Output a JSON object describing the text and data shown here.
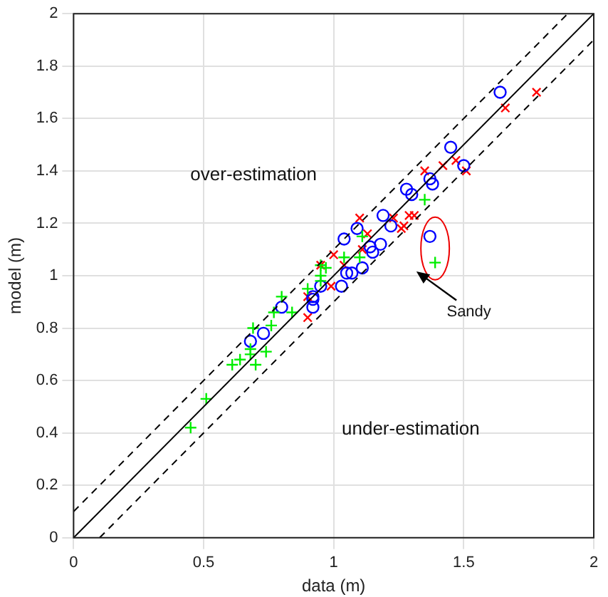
{
  "chart_data": {
    "type": "scatter",
    "xlabel": "data (m)",
    "ylabel": "model (m)",
    "xlim": [
      0,
      2
    ],
    "ylim": [
      0,
      2
    ],
    "xticks": [
      0,
      0.5,
      1,
      1.5,
      2
    ],
    "yticks": [
      0,
      0.2,
      0.4,
      0.6,
      0.8,
      1,
      1.2,
      1.4,
      1.6,
      1.8,
      2
    ],
    "grid": true,
    "legend": false,
    "series": [
      {
        "type": "line",
        "color": "#000000",
        "line_style": "solid",
        "marker": "none",
        "x": [
          0,
          2
        ],
        "values": [
          0,
          2
        ]
      },
      {
        "type": "line",
        "color": "#000000",
        "line_style": "dashed",
        "marker": "none",
        "x": [
          0,
          1.9
        ],
        "values": [
          0.1,
          2
        ]
      },
      {
        "type": "line",
        "color": "#000000",
        "line_style": "dashed",
        "marker": "none",
        "x": [
          0.1,
          2
        ],
        "values": [
          0,
          1.9
        ]
      },
      {
        "color": "#00ee00",
        "marker": "cross",
        "x": [
          0.45,
          0.51,
          0.61,
          0.64,
          0.68,
          0.68,
          0.7,
          0.74,
          0.69,
          0.76,
          0.77,
          0.8,
          0.84,
          0.9,
          0.95,
          0.95,
          0.97,
          0.95,
          1.04,
          1.11,
          1.1,
          1.35,
          1.39
        ],
        "values": [
          0.42,
          0.53,
          0.66,
          0.68,
          0.7,
          0.72,
          0.66,
          0.71,
          0.8,
          0.81,
          0.86,
          0.92,
          0.86,
          0.95,
          1.0,
          1.04,
          1.03,
          0.98,
          1.07,
          1.15,
          1.07,
          1.29,
          1.05
        ]
      },
      {
        "color": "#0000ff",
        "marker": "circle",
        "x": [
          0.68,
          0.73,
          0.8,
          0.92,
          0.92,
          0.92,
          0.95,
          1.03,
          1.05,
          1.07,
          1.11,
          1.04,
          1.09,
          1.14,
          1.15,
          1.18,
          1.19,
          1.22,
          1.28,
          1.3,
          1.37,
          1.38,
          1.45,
          1.5,
          1.37,
          1.64
        ],
        "values": [
          0.75,
          0.78,
          0.88,
          0.91,
          0.88,
          0.92,
          0.96,
          0.96,
          1.01,
          1.01,
          1.03,
          1.14,
          1.18,
          1.11,
          1.09,
          1.12,
          1.23,
          1.19,
          1.33,
          1.31,
          1.37,
          1.35,
          1.49,
          1.42,
          1.15,
          1.7
        ]
      },
      {
        "color": "#ff0000",
        "marker": "x",
        "x": [
          0.9,
          0.9,
          0.95,
          1.0,
          0.99,
          1.04,
          1.1,
          1.13,
          1.11,
          1.23,
          1.26,
          1.27,
          1.29,
          1.31,
          1.35,
          1.42,
          1.47,
          1.51,
          1.66,
          1.78
        ],
        "values": [
          0.84,
          0.92,
          1.04,
          1.08,
          0.96,
          1.04,
          1.22,
          1.16,
          1.1,
          1.22,
          1.18,
          1.19,
          1.23,
          1.23,
          1.4,
          1.42,
          1.44,
          1.4,
          1.64,
          1.7
        ]
      }
    ],
    "annotations": [
      "over-estimation",
      "under-estimation",
      "Sandy"
    ]
  }
}
